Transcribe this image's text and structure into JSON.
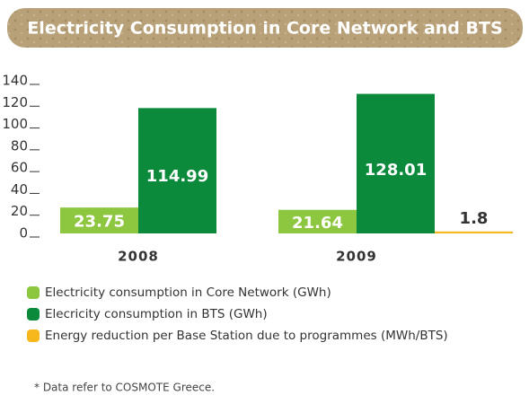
{
  "chart_data": {
    "type": "bar",
    "title": "Electricity Consumption in Core Network and BTS",
    "categories": [
      "2008",
      "2009"
    ],
    "series": [
      {
        "name": "Electricity consumption in Core Network (GWh)",
        "color": "#8dc63f",
        "values": [
          23.75,
          21.64
        ]
      },
      {
        "name": "Elecricity consumption in BTS (GWh)",
        "color": "#0b8a3b",
        "values": [
          114.99,
          128.01
        ]
      },
      {
        "name": "Energy reduction per Base Station due to programmes (MWh/BTS)",
        "color": "#f6b81d",
        "values": [
          null,
          1.8
        ]
      }
    ],
    "ylim": [
      0,
      140
    ],
    "yticks": [
      0,
      20,
      40,
      60,
      80,
      100,
      120,
      140
    ],
    "footnote": "*  Data refer to COSMOTE Greece."
  }
}
